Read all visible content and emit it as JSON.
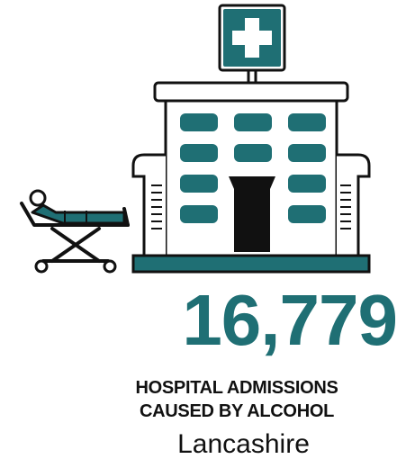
{
  "stat": {
    "value": "16,779",
    "label_line1": "HOSPITAL ADMISSIONS",
    "label_line2": "CAUSED BY ALCOHOL",
    "region": "Lancashire"
  },
  "colors": {
    "accent": "#1f6f74",
    "ink": "#111111"
  },
  "icons": {
    "hospital": "hospital-icon",
    "stretcher": "stretcher-icon"
  }
}
